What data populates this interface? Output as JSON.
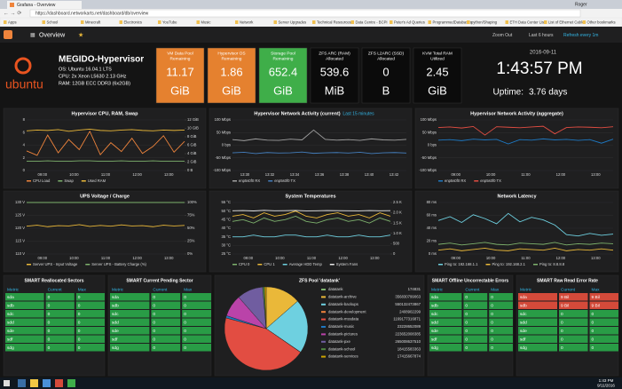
{
  "browser": {
    "tab": "Grafana - Overview",
    "url": "https://dashboard.networkarts.net/dashboard/db/overview",
    "user": "Roger",
    "bookmarks": [
      "Apps",
      "School",
      "Minecraft",
      "Electronics",
      "YouTube",
      "Music",
      "Network",
      "Server Upgrades",
      "Technical Resources",
      "Data Centre - BCPI",
      "Peter's Ad Queries",
      "ProgrammedDatabases",
      "python/Shaping",
      "ETH Data Center List",
      "List of Ethernet Cables",
      "Other bookmarks"
    ]
  },
  "nav": {
    "dashboard": "Overview",
    "zoom": "Zoom Out",
    "range": "Last 6 hours",
    "refresh": "Refresh every 1m"
  },
  "host": {
    "logo": "ubuntu",
    "name": "MEGIDO-Hypervisor",
    "details": [
      "OS: Ubuntu 16.04.1 LTS",
      "CPU: 2x Xeon L5630 2.13 GHz",
      "RAM: 12GB ECC DDR3 (6x2GB)"
    ]
  },
  "stats": [
    {
      "title": [
        "VM Data Pool",
        "Remaining"
      ],
      "value": 11.17,
      "unit": "GiB",
      "color": "#e5812f"
    },
    {
      "title": [
        "Hypervisor OS",
        "Remaining"
      ],
      "value": 1.86,
      "unit": "GiB",
      "color": "#e5812f"
    },
    {
      "title": [
        "Storage Pool",
        "Remaining"
      ],
      "value": 652.4,
      "unit": "GiB",
      "color": "#3fae49"
    },
    {
      "title": [
        "ZFS ARC (RAM)",
        "Allocated"
      ],
      "value": 539.6,
      "unit": "MiB",
      "color": "#0b0b0b"
    },
    {
      "title": [
        "ZFS L2ARC (SSD)",
        "Allocated"
      ],
      "value": 0,
      "unit": "B",
      "color": "#0b0b0b"
    },
    {
      "title": [
        "KVM Total RAM",
        "Utilized"
      ],
      "value": 2.45,
      "unit": "GiB",
      "color": "#0b0b0b"
    }
  ],
  "clock": {
    "date": "2016-09-11",
    "time": "1:43:57 PM",
    "uptime_label": "Uptime:",
    "uptime": "3.76 days"
  },
  "graphs": [
    {
      "title": "Hypervisor CPU, RAM, Swap",
      "ylim": [
        0,
        8
      ],
      "yticks": [
        0,
        2,
        4,
        6,
        8
      ],
      "y2lim": [
        0,
        12
      ],
      "y2ticks": [
        {
          "value": 0,
          "label": "0 B"
        },
        {
          "value": 2,
          "label": "2 GiB"
        },
        {
          "value": 4,
          "label": "4 GiB"
        },
        {
          "value": 6,
          "label": "6 GiB"
        },
        {
          "value": 8,
          "label": "8 GiB"
        },
        {
          "value": 10,
          "label": "10 GiB"
        },
        {
          "value": 12,
          "label": "12 GiB"
        }
      ],
      "xticks": [
        "09:00",
        "10:00",
        "11:00",
        "12:00",
        "13:00"
      ],
      "series": [
        {
          "name": "CPU Load",
          "color": "#ef843c",
          "values": [
            3.1,
            2.4,
            5.6,
            2.8,
            4.9,
            3.3,
            6.2,
            2.5,
            4.4,
            3.0,
            5.1,
            2.7,
            3.8,
            5.5,
            2.9,
            4.6
          ]
        },
        {
          "name": "Swap",
          "color": "#7eb26d",
          "axis": "y2",
          "values": [
            2.2,
            2.2,
            2.3,
            2.2,
            2.2,
            2.3,
            2.3,
            2.2,
            2.2,
            2.3,
            2.2,
            2.2,
            2.3,
            2.2,
            2.2,
            2.2
          ]
        },
        {
          "name": "Used RAM",
          "color": "#eab839",
          "axis": "y2",
          "values": [
            9.4,
            9.6,
            9.5,
            9.7,
            9.3,
            9.6,
            9.8,
            9.5,
            9.4,
            9.6,
            9.7,
            9.5,
            9.4,
            9.6,
            9.5,
            9.6
          ]
        }
      ]
    },
    {
      "title": "Hypervisor Network Activity (current)",
      "subtitle": "Last 15 minutes",
      "ylim": [
        -100,
        100
      ],
      "yticks": [
        {
          "value": -100,
          "label": "-100 Mbps"
        },
        {
          "value": -50,
          "label": "-50 Mbps"
        },
        {
          "value": 0,
          "label": "0 bps"
        },
        {
          "value": 50,
          "label": "50 Mbps"
        },
        {
          "value": 100,
          "label": "100 Mbps"
        }
      ],
      "xticks": [
        "13:30",
        "13:32",
        "13:34",
        "13:36",
        "13:38",
        "13:40",
        "13:42"
      ],
      "series": [
        {
          "name": "enp5s0f0 RX",
          "color": "#a0a0a0",
          "values": [
            22,
            18,
            25,
            20,
            19,
            24,
            21,
            60,
            23,
            20,
            22,
            19,
            25,
            21,
            20,
            23
          ]
        },
        {
          "name": "enp5s0f0 TX",
          "color": "#447ebc",
          "values": [
            -30,
            -28,
            -33,
            -29,
            -31,
            -30,
            -27,
            -32,
            -30,
            -29,
            -31,
            -28,
            -33,
            -30,
            -29,
            -31
          ]
        }
      ]
    },
    {
      "title": "Hypervisor Network Activity (aggregate)",
      "ylim": [
        -100,
        100
      ],
      "yticks": [
        {
          "value": -100,
          "label": "-100 Mbps"
        },
        {
          "value": -50,
          "label": "-50 Mbps"
        },
        {
          "value": 0,
          "label": "0 bps"
        },
        {
          "value": 50,
          "label": "50 Mbps"
        },
        {
          "value": 100,
          "label": "100 Mbps"
        }
      ],
      "xticks": [
        "09:00",
        "10:00",
        "11:00",
        "12:00",
        "13:00"
      ],
      "series": [
        {
          "name": "enp5s0f0 RX",
          "color": "#1f78c1",
          "values": [
            20,
            22,
            18,
            24,
            21,
            23,
            5,
            22,
            20,
            25,
            21,
            23,
            19,
            22,
            8,
            24
          ]
        },
        {
          "name": "enp5s0f0 TX",
          "color": "#e24d42",
          "values": [
            70,
            72,
            68,
            74,
            40,
            73,
            71,
            69,
            72,
            75,
            45,
            70,
            72,
            71,
            69,
            73
          ]
        }
      ]
    },
    {
      "title": "UPS Voltage / Charge",
      "ylim": [
        110,
        130
      ],
      "yticks": [
        {
          "value": 110,
          "label": "110 V"
        },
        {
          "value": 115,
          "label": "115 V"
        },
        {
          "value": 120,
          "label": "120 V"
        },
        {
          "value": 125,
          "label": "125 V"
        },
        {
          "value": 130,
          "label": "130 V"
        }
      ],
      "y2lim": [
        0,
        100
      ],
      "y2ticks": [
        {
          "value": 0,
          "label": "0%"
        },
        {
          "value": 25,
          "label": "25%"
        },
        {
          "value": 50,
          "label": "50%"
        },
        {
          "value": 75,
          "label": "75%"
        },
        {
          "value": 100,
          "label": "100%"
        }
      ],
      "xticks": [
        "09:00",
        "10:00",
        "11:00",
        "12:00",
        "13:00"
      ],
      "series": [
        {
          "name": "Server UPS - Input Voltage",
          "color": "#eab839",
          "values": [
            120.8,
            121.2,
            120.6,
            121.0,
            120.9,
            121.4,
            120.7,
            121.1,
            120.8,
            121.3,
            120.9,
            121.0,
            120.6,
            121.2,
            120.9,
            121.1
          ]
        },
        {
          "name": "Server UPS - Battery Charge (%)",
          "color": "#7eb26d",
          "axis": "y2",
          "values": [
            100,
            100,
            100,
            100,
            100,
            100,
            100,
            100,
            100,
            100,
            100,
            100,
            100,
            100,
            100,
            100
          ]
        }
      ]
    },
    {
      "title": "System Temperatures",
      "ylim": [
        25,
        55
      ],
      "yticks": [
        {
          "value": 25,
          "label": "25 °C"
        },
        {
          "value": 30,
          "label": "30 °C"
        },
        {
          "value": 35,
          "label": "35 °C"
        },
        {
          "value": 40,
          "label": "40 °C"
        },
        {
          "value": 45,
          "label": "45 °C"
        },
        {
          "value": 50,
          "label": "50 °C"
        },
        {
          "value": 55,
          "label": "55 °C"
        }
      ],
      "y2lim": [
        0,
        2500
      ],
      "y2ticks": [
        0,
        500,
        {
          "value": 1000,
          "label": "1.0 K"
        },
        {
          "value": 1500,
          "label": "1.5 K"
        },
        {
          "value": 2000,
          "label": "2.0 K"
        },
        {
          "value": 2500,
          "label": "2.5 K"
        }
      ],
      "xticks": [
        "09:00",
        "10:00",
        "11:00",
        "12:00",
        "13:00"
      ],
      "series": [
        {
          "name": "CPU 0",
          "color": "#7eb26d",
          "values": [
            44,
            45,
            43,
            46,
            44,
            45,
            47,
            44,
            43,
            45,
            46,
            44,
            45,
            43,
            46,
            44
          ]
        },
        {
          "name": "CPU 1",
          "color": "#eab839",
          "values": [
            47,
            48,
            46,
            49,
            47,
            48,
            50,
            47,
            46,
            48,
            49,
            47,
            48,
            46,
            49,
            47
          ]
        },
        {
          "name": "Average HDD Temp",
          "color": "#6ed0e0",
          "values": [
            35,
            35,
            36,
            35,
            35,
            36,
            36,
            35,
            35,
            36,
            35,
            35,
            36,
            35,
            35,
            36
          ]
        },
        {
          "name": "System Fans",
          "color": "#e8e8e8",
          "axis": "y2",
          "values": [
            2100,
            2110,
            2090,
            2120,
            2100,
            2105,
            2115,
            2095,
            2100,
            2110,
            2105,
            2100,
            2095,
            2110,
            2100,
            2105
          ]
        }
      ]
    },
    {
      "title": "Network Latency",
      "ylim": [
        0,
        80
      ],
      "yticks": [
        {
          "value": 0,
          "label": "0 ms"
        },
        {
          "value": 20,
          "label": "20 ms"
        },
        {
          "value": 40,
          "label": "40 ms"
        },
        {
          "value": 60,
          "label": "60 ms"
        },
        {
          "value": 80,
          "label": "80 ms"
        }
      ],
      "xticks": [
        "09:00",
        "10:00",
        "11:00",
        "12:00",
        "13:00"
      ],
      "series": [
        {
          "name": "Ping to: 192.168.1.1",
          "color": "#6ed0e0",
          "values": [
            52,
            58,
            49,
            61,
            55,
            47,
            63,
            50,
            57,
            53,
            45,
            30,
            28,
            32,
            29,
            31
          ]
        },
        {
          "name": "Ping to: 192.168.2.1",
          "color": "#eab839",
          "values": [
            6,
            8,
            5,
            7,
            9,
            6,
            5,
            8,
            7,
            6,
            9,
            5,
            7,
            6,
            8,
            6
          ]
        },
        {
          "name": "Ping to: 8.8.8.8",
          "color": "#7eb26d",
          "values": [
            15,
            17,
            14,
            16,
            18,
            15,
            14,
            17,
            16,
            15,
            18,
            14,
            16,
            15,
            17,
            16
          ]
        }
      ]
    }
  ],
  "tables": [
    {
      "title": "SMART Reallocated Sectors",
      "columns": [
        "Metric",
        "Current",
        "Max"
      ],
      "rows": [
        [
          "sda",
          0,
          0
        ],
        [
          "sdb",
          0,
          0
        ],
        [
          "sdc",
          0,
          0
        ],
        [
          "sdd",
          0,
          0
        ],
        [
          "sde",
          0,
          0
        ],
        [
          "sdf",
          0,
          0
        ],
        [
          "sdg",
          0,
          0
        ]
      ]
    },
    {
      "title": "SMART Current Pending Sector",
      "columns": [
        "Metric",
        "Current",
        "Max"
      ],
      "rows": [
        [
          "sda",
          0,
          0
        ],
        [
          "sdb",
          0,
          0
        ],
        [
          "sdc",
          0,
          0
        ],
        [
          "sdd",
          0,
          0
        ],
        [
          "sde",
          0,
          0
        ],
        [
          "sdf",
          0,
          0
        ],
        [
          "sdg",
          0,
          0
        ]
      ]
    },
    {
      "title": "SMART Offline Uncorrectable Errors",
      "columns": [
        "Metric",
        "Current",
        "Max"
      ],
      "rows": [
        [
          "sda",
          0,
          0
        ],
        [
          "sdb",
          0,
          0
        ],
        [
          "sdc",
          0,
          0
        ],
        [
          "sdd",
          0,
          0
        ],
        [
          "sde",
          0,
          0
        ],
        [
          "sdf",
          0,
          0
        ],
        [
          "sdg",
          0,
          0
        ]
      ]
    },
    {
      "title": "SMART Raw Read Error Rate",
      "columns": [
        "Metric",
        "Current",
        "Max"
      ],
      "rows": [
        [
          "sda",
          {
            "value": 9000000000,
            "label": "9 Bil"
          },
          {
            "value": 9000000000,
            "label": "9 Bil"
          }
        ],
        [
          "sdb",
          {
            "value": 9000000000,
            "label": "9 Bil"
          },
          {
            "value": 9000000000,
            "label": "9 Bil"
          }
        ],
        [
          "sdc",
          0,
          0
        ],
        [
          "sdd",
          0,
          0
        ],
        [
          "sde",
          0,
          0
        ],
        [
          "sdf",
          0,
          0
        ],
        [
          "sdg",
          0,
          0
        ]
      ]
    }
  ],
  "pie": {
    "title": "ZFS Pool 'datatank'",
    "slices": [
      {
        "name": "datatank",
        "value": 174831,
        "color": "#7eb26d"
      },
      {
        "name": "datatank-archive",
        "value": 356830799063,
        "color": "#eab839"
      },
      {
        "name": "datatank-backups",
        "value": 550132473867,
        "color": "#6ed0e0"
      },
      {
        "name": "datatank-development",
        "value": 2408902299,
        "color": "#ef843c"
      },
      {
        "name": "datatank-mssdata",
        "value": 1169177316871,
        "color": "#e24d42"
      },
      {
        "name": "datatank-music",
        "value": 23228652089,
        "color": "#1f78c1"
      },
      {
        "name": "datatank-pictures",
        "value": 223652008385,
        "color": "#ba43a9"
      },
      {
        "name": "datatank-pxe",
        "value": 265008637510,
        "color": "#705da0"
      },
      {
        "name": "datatank-school",
        "value": 18415583363,
        "color": "#508642"
      },
      {
        "name": "datatank-services",
        "value": 17415667874,
        "color": "#cca300"
      }
    ]
  },
  "taskbar": {
    "time": "1:43 PM",
    "date": "9/11/2016"
  }
}
